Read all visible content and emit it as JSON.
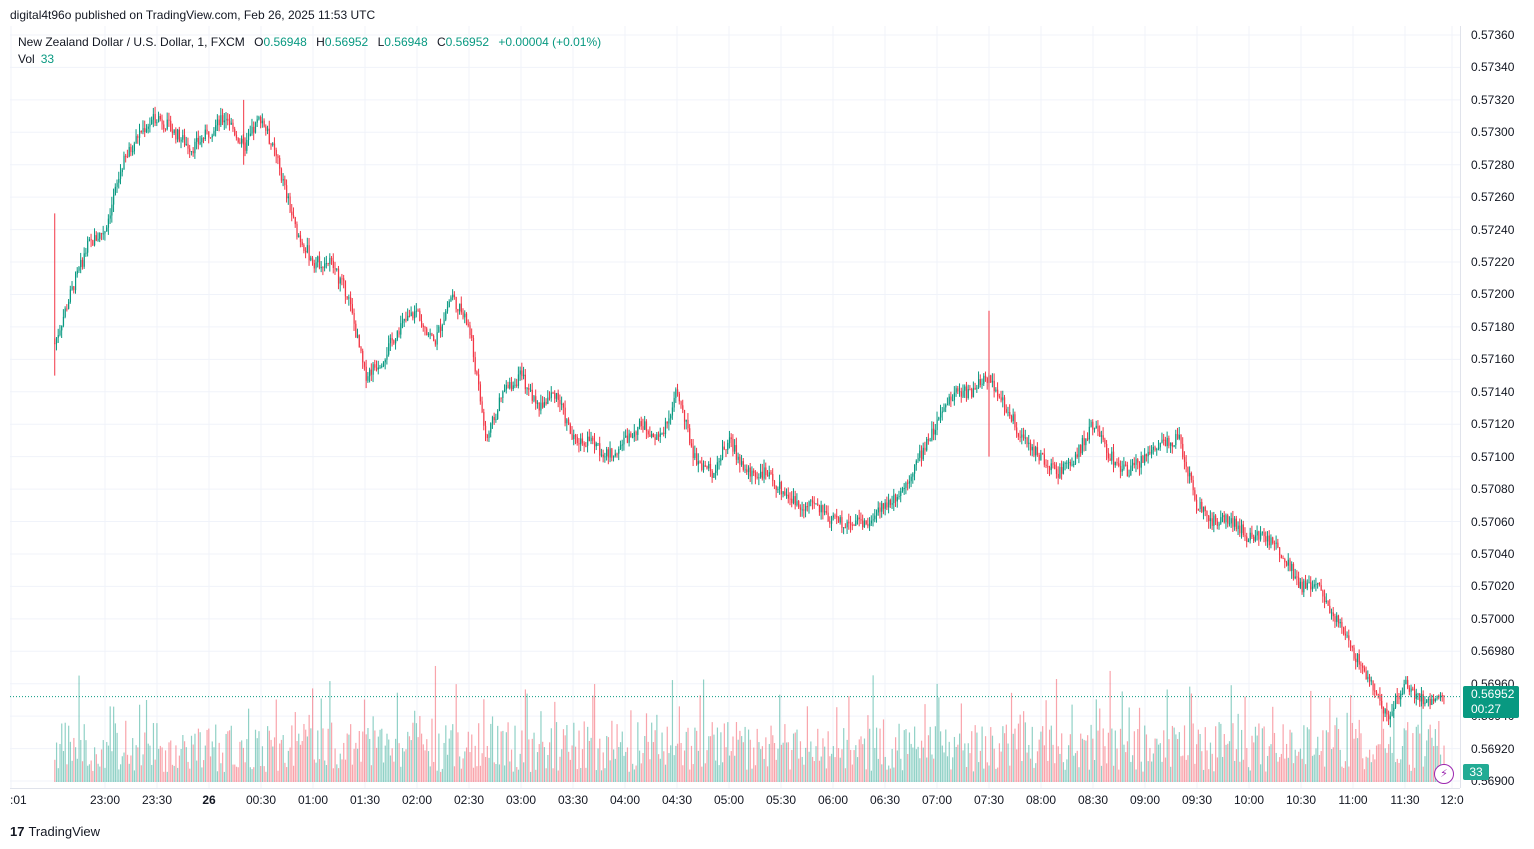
{
  "header": {
    "published_text": "digital4t96o published on TradingView.com, Feb 26, 2025 11:53 UTC"
  },
  "legend": {
    "symbol": "New Zealand Dollar / U.S. Dollar, 1, FXCM",
    "open_label": "O",
    "open": "0.56948",
    "high_label": "H",
    "high": "0.56952",
    "low_label": "L",
    "low": "0.56948",
    "close_label": "C",
    "close": "0.56952",
    "change": "+0.00004 (+0.01%)",
    "vol_label": "Vol",
    "vol_value": "33"
  },
  "price_tag": {
    "price": "0.56952",
    "countdown": "00:27"
  },
  "volume_tag": "33",
  "footer": {
    "logo_glyph": "17",
    "brand": "TradingView"
  },
  "colors": {
    "up": "#089981",
    "down": "#f23645",
    "grid": "#f0f3fa",
    "last_price_line": "#089981"
  },
  "chart_data": {
    "type": "candlestick",
    "symbol": "NZDUSD",
    "timeframe": "1",
    "y_axis": {
      "min": 0.569,
      "max": 0.5736,
      "ticks": [
        "0.56900",
        "0.56920",
        "0.56940",
        "0.56960",
        "0.56980",
        "0.57000",
        "0.57020",
        "0.57040",
        "0.57060",
        "0.57080",
        "0.57100",
        "0.57120",
        "0.57140",
        "0.57160",
        "0.57180",
        "0.57200",
        "0.57220",
        "0.57240",
        "0.57260",
        "0.57280",
        "0.57300",
        "0.57320",
        "0.57340",
        "0.57360"
      ]
    },
    "x_axis": {
      "ticks": [
        ":01",
        "23:00",
        "23:30",
        "26",
        "00:30",
        "01:00",
        "01:30",
        "02:00",
        "02:30",
        "03:00",
        "03:30",
        "04:00",
        "04:30",
        "05:00",
        "05:30",
        "06:00",
        "06:30",
        "07:00",
        "07:30",
        "08:00",
        "08:30",
        "09:00",
        "09:30",
        "10:00",
        "10:30",
        "11:00",
        "11:30",
        "12:0"
      ]
    },
    "price_path": [
      {
        "t": "22:31",
        "price": 0.5717
      },
      {
        "t": "22:40",
        "price": 0.572
      },
      {
        "t": "22:50",
        "price": 0.5723
      },
      {
        "t": "23:00",
        "price": 0.5724
      },
      {
        "t": "23:10",
        "price": 0.5728
      },
      {
        "t": "23:20",
        "price": 0.573
      },
      {
        "t": "23:30",
        "price": 0.5731
      },
      {
        "t": "23:40",
        "price": 0.573
      },
      {
        "t": "23:50",
        "price": 0.5729
      },
      {
        "t": "00:00",
        "price": 0.573
      },
      {
        "t": "00:10",
        "price": 0.5731
      },
      {
        "t": "00:20",
        "price": 0.5729
      },
      {
        "t": "00:30",
        "price": 0.5731
      },
      {
        "t": "00:40",
        "price": 0.5728
      },
      {
        "t": "00:50",
        "price": 0.5724
      },
      {
        "t": "01:00",
        "price": 0.5722
      },
      {
        "t": "01:10",
        "price": 0.5722
      },
      {
        "t": "01:20",
        "price": 0.572
      },
      {
        "t": "01:30",
        "price": 0.5715
      },
      {
        "t": "01:40",
        "price": 0.5716
      },
      {
        "t": "01:50",
        "price": 0.5718
      },
      {
        "t": "02:00",
        "price": 0.5719
      },
      {
        "t": "02:10",
        "price": 0.5717
      },
      {
        "t": "02:20",
        "price": 0.572
      },
      {
        "t": "02:30",
        "price": 0.5718
      },
      {
        "t": "02:40",
        "price": 0.5711
      },
      {
        "t": "02:50",
        "price": 0.5714
      },
      {
        "t": "03:00",
        "price": 0.5715
      },
      {
        "t": "03:10",
        "price": 0.5713
      },
      {
        "t": "03:20",
        "price": 0.5714
      },
      {
        "t": "03:30",
        "price": 0.5711
      },
      {
        "t": "03:40",
        "price": 0.5711
      },
      {
        "t": "03:50",
        "price": 0.571
      },
      {
        "t": "04:00",
        "price": 0.5711
      },
      {
        "t": "04:10",
        "price": 0.5712
      },
      {
        "t": "04:20",
        "price": 0.5711
      },
      {
        "t": "04:30",
        "price": 0.5714
      },
      {
        "t": "04:40",
        "price": 0.571
      },
      {
        "t": "04:50",
        "price": 0.5709
      },
      {
        "t": "05:00",
        "price": 0.5711
      },
      {
        "t": "05:10",
        "price": 0.5709
      },
      {
        "t": "05:20",
        "price": 0.5709
      },
      {
        "t": "05:30",
        "price": 0.5708
      },
      {
        "t": "05:40",
        "price": 0.5707
      },
      {
        "t": "05:50",
        "price": 0.5707
      },
      {
        "t": "06:00",
        "price": 0.5706
      },
      {
        "t": "06:10",
        "price": 0.5706
      },
      {
        "t": "06:20",
        "price": 0.5706
      },
      {
        "t": "06:30",
        "price": 0.5707
      },
      {
        "t": "06:40",
        "price": 0.5708
      },
      {
        "t": "06:50",
        "price": 0.571
      },
      {
        "t": "07:00",
        "price": 0.5712
      },
      {
        "t": "07:10",
        "price": 0.5714
      },
      {
        "t": "07:20",
        "price": 0.5714
      },
      {
        "t": "07:30",
        "price": 0.5715
      },
      {
        "t": "07:40",
        "price": 0.5713
      },
      {
        "t": "07:50",
        "price": 0.5711
      },
      {
        "t": "08:00",
        "price": 0.571
      },
      {
        "t": "08:10",
        "price": 0.5709
      },
      {
        "t": "08:20",
        "price": 0.571
      },
      {
        "t": "08:30",
        "price": 0.5712
      },
      {
        "t": "08:40",
        "price": 0.571
      },
      {
        "t": "08:50",
        "price": 0.5709
      },
      {
        "t": "09:00",
        "price": 0.571
      },
      {
        "t": "09:10",
        "price": 0.5711
      },
      {
        "t": "09:20",
        "price": 0.5711
      },
      {
        "t": "09:30",
        "price": 0.5707
      },
      {
        "t": "09:40",
        "price": 0.5706
      },
      {
        "t": "09:50",
        "price": 0.5706
      },
      {
        "t": "10:00",
        "price": 0.5705
      },
      {
        "t": "10:10",
        "price": 0.5705
      },
      {
        "t": "10:20",
        "price": 0.5704
      },
      {
        "t": "10:30",
        "price": 0.5702
      },
      {
        "t": "10:40",
        "price": 0.5702
      },
      {
        "t": "10:50",
        "price": 0.57
      },
      {
        "t": "11:00",
        "price": 0.5698
      },
      {
        "t": "11:10",
        "price": 0.5696
      },
      {
        "t": "11:20",
        "price": 0.5694
      },
      {
        "t": "11:30",
        "price": 0.5696
      },
      {
        "t": "11:40",
        "price": 0.5695
      },
      {
        "t": "11:53",
        "price": 0.56952
      }
    ],
    "notable_wicks": [
      {
        "t": "22:31",
        "high": 0.5725,
        "low": 0.5715
      },
      {
        "t": "00:20",
        "high": 0.5732,
        "low": 0.5728
      },
      {
        "t": "07:30",
        "high": 0.5719,
        "low": 0.571
      }
    ],
    "volume_max": 120,
    "last_volume": 33,
    "last_price": 0.56952
  }
}
